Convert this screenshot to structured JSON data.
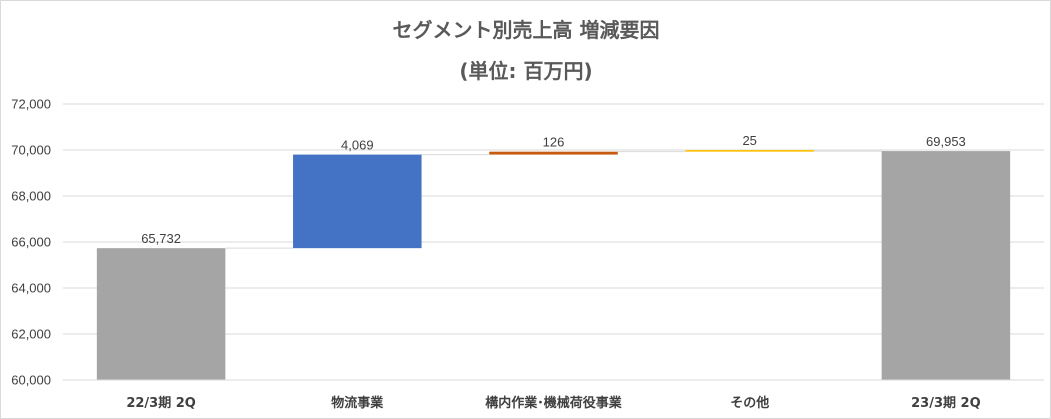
{
  "chart_data": {
    "type": "bar",
    "subtype": "waterfall",
    "title": "セグメント別売上高 増減要因",
    "subtitle": "(単位: 百万円)",
    "categories": [
      "22/3期 2Q",
      "物流事業",
      "構内作業･機械荷役事業",
      "その他",
      "23/3期 2Q"
    ],
    "steps": [
      {
        "category": "22/3期 2Q",
        "kind": "total",
        "value": 65732,
        "label": "65,732",
        "color": "#a5a5a5"
      },
      {
        "category": "物流事業",
        "kind": "delta",
        "value": 4069,
        "label": "4,069",
        "color": "#4472c4"
      },
      {
        "category": "構内作業･機械荷役事業",
        "kind": "delta",
        "value": 126,
        "label": "126",
        "color": "#c55a11"
      },
      {
        "category": "その他",
        "kind": "delta",
        "value": 25,
        "label": "25",
        "color": "#ffc000"
      },
      {
        "category": "23/3期 2Q",
        "kind": "total",
        "value": 69953,
        "label": "69,953",
        "color": "#a5a5a5"
      }
    ],
    "ylim": [
      60000,
      72000
    ],
    "yticks": [
      60000,
      62000,
      64000,
      66000,
      68000,
      70000,
      72000
    ],
    "ytick_labels": [
      "60,000",
      "62,000",
      "64,000",
      "66,000",
      "68,000",
      "70,000",
      "72,000"
    ],
    "grid": true,
    "legend": "none",
    "connector_color": "#d9d9d9"
  }
}
